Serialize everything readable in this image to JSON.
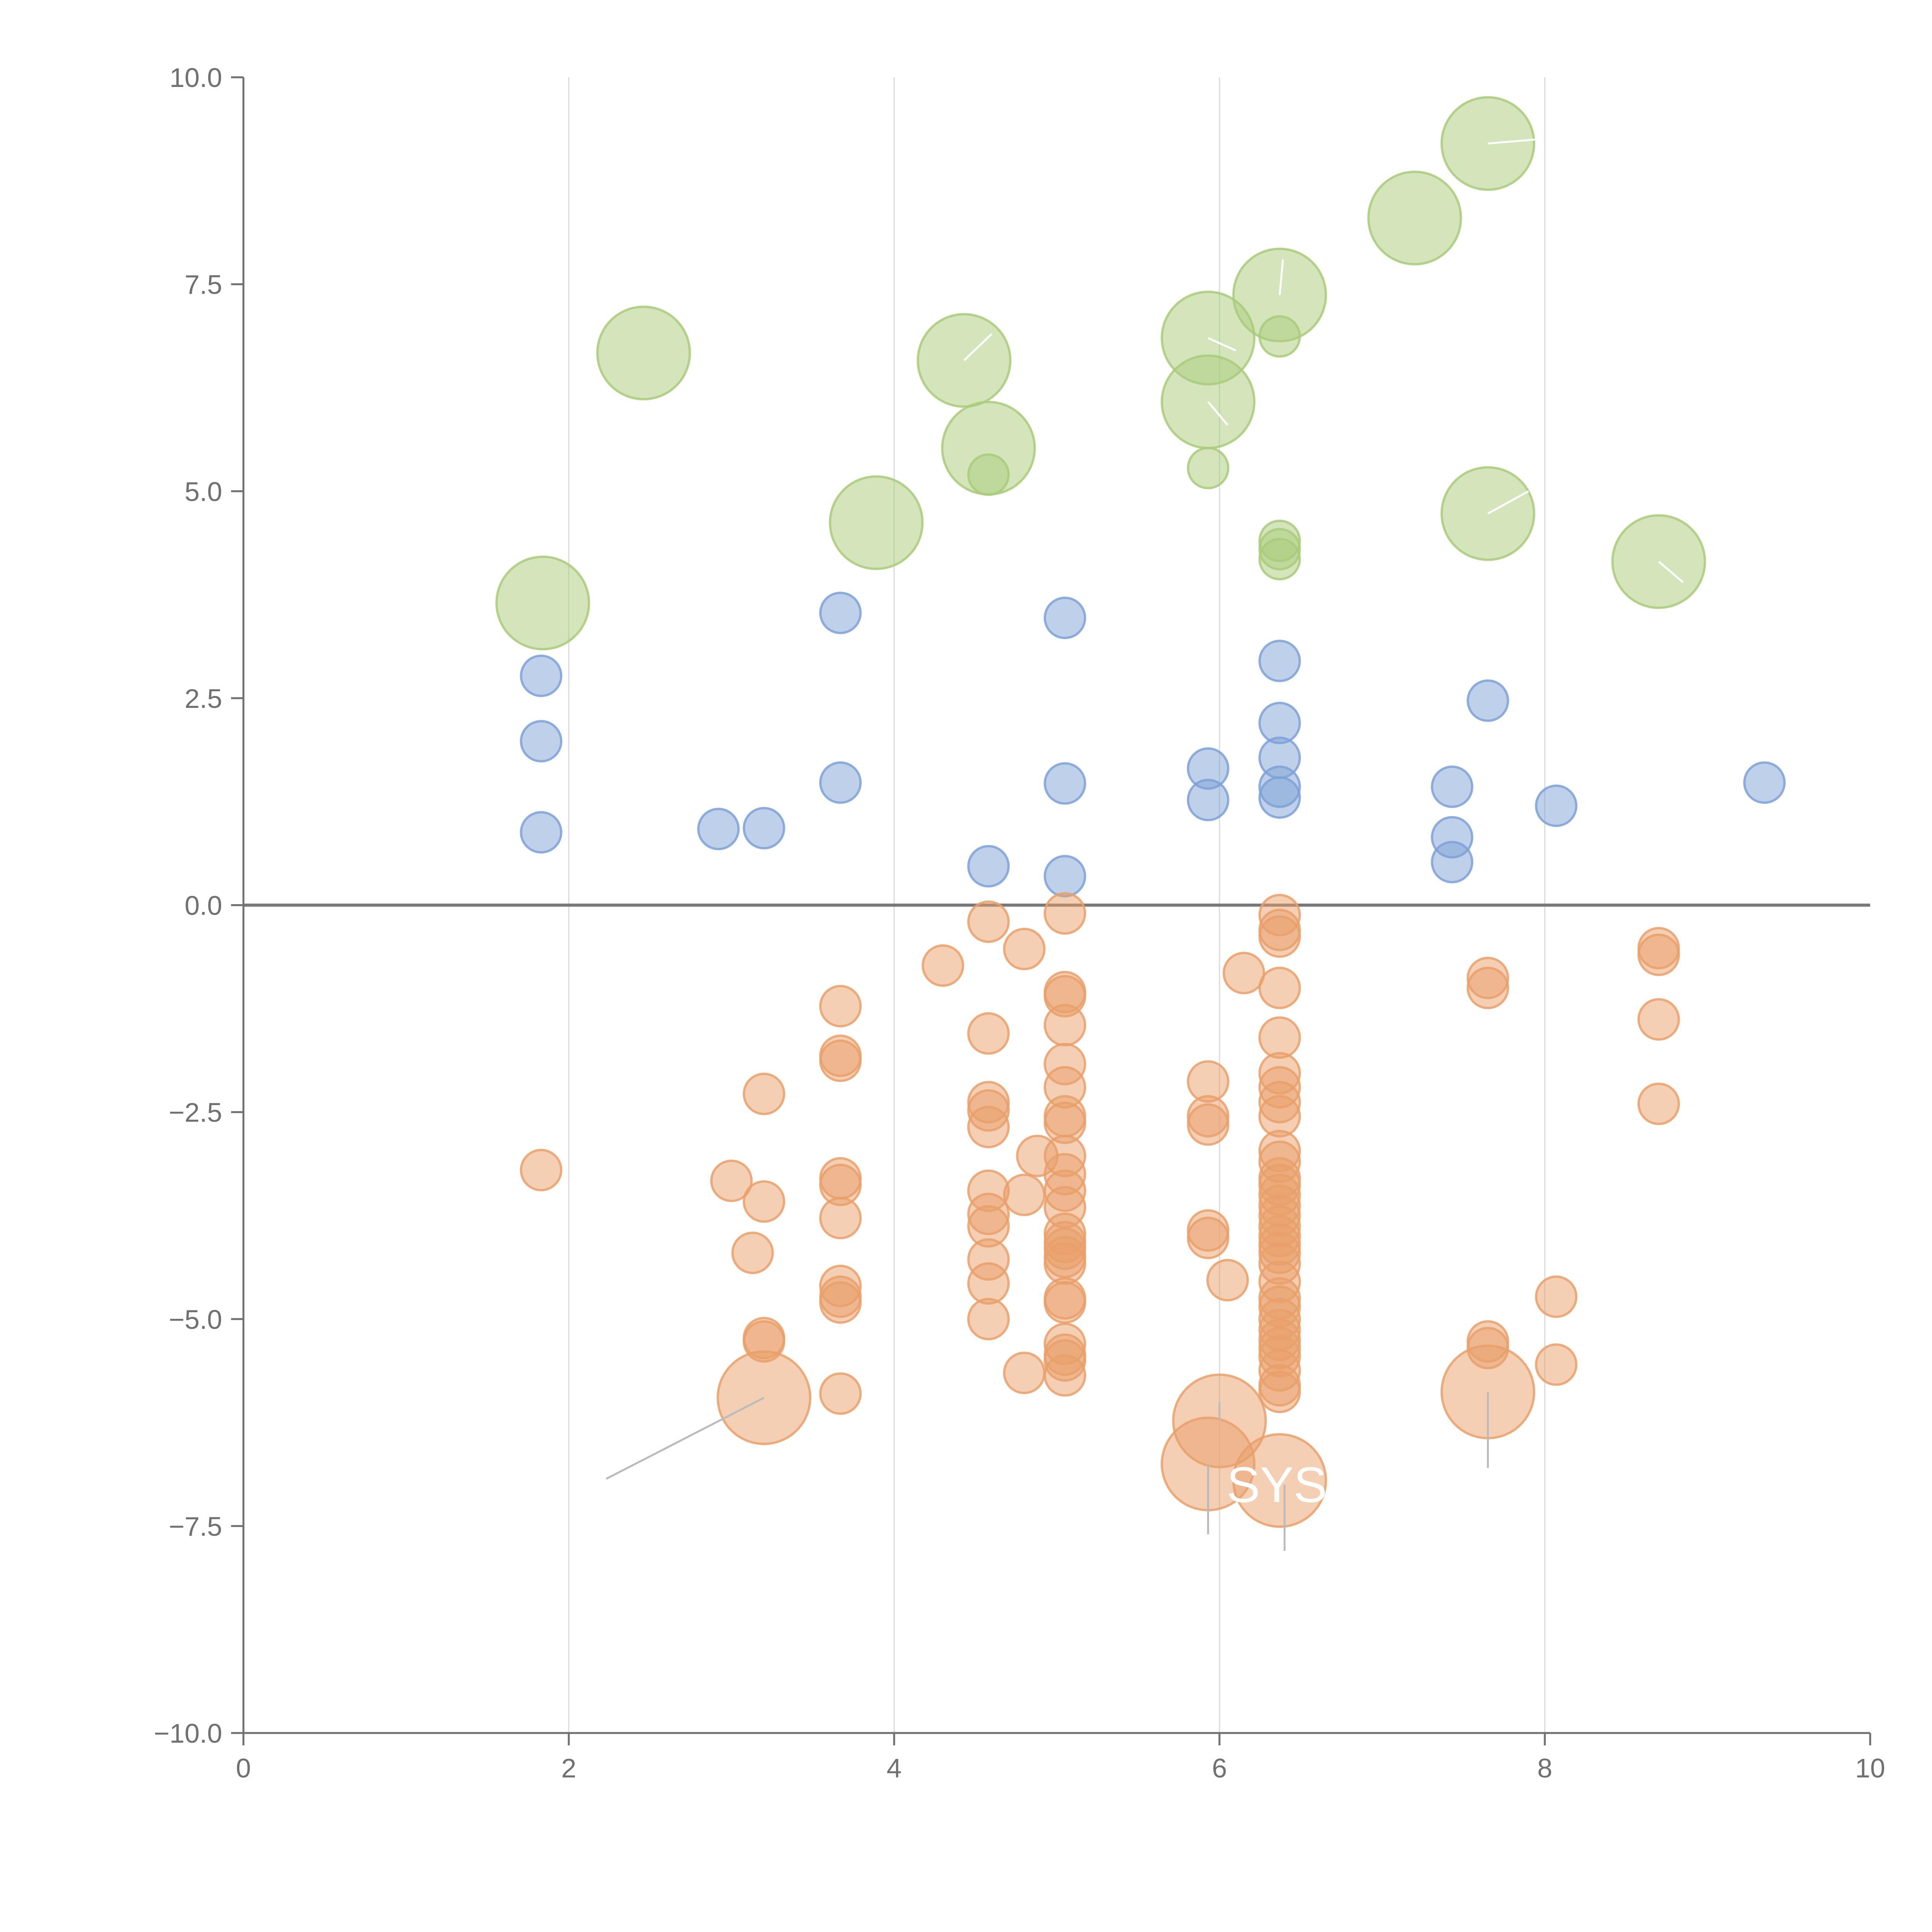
{
  "chart_data": {
    "type": "scatter",
    "title": "",
    "xlabel": "",
    "ylabel": "",
    "xlim": [
      0,
      10
    ],
    "ylim": [
      -10,
      10
    ],
    "x_ticks": [
      "0",
      "2",
      "4",
      "6",
      "8",
      "10"
    ],
    "y_ticks": [
      "10.0",
      "7.5",
      "5.0",
      "2.5",
      "0.0",
      "−2.5",
      "−5.0",
      "−7.5",
      "−10.0"
    ],
    "grid": "vertical",
    "zero_line": 0,
    "colors": {
      "green": "#a9cb7a",
      "blue": "#7ea1d6",
      "orange": "#e9a06a",
      "gridline": "#d9d9d9",
      "axis": "#707070",
      "zeroline": "#777777"
    },
    "annotations": [
      {
        "text": "SYS",
        "x": 6.4,
        "y": -7.0
      }
    ],
    "series": [
      {
        "name": "green",
        "color": "#a9cb7a",
        "points": [
          [
            7.65,
            9.2,
            2.3
          ],
          [
            7.2,
            8.3,
            2.3
          ],
          [
            6.37,
            7.37,
            2.3
          ],
          [
            5.93,
            6.85,
            2.3
          ],
          [
            6.37,
            6.87,
            1
          ],
          [
            2.46,
            6.67,
            2.3
          ],
          [
            4.43,
            6.58,
            2.3
          ],
          [
            5.93,
            6.08,
            2.3
          ],
          [
            4.58,
            5.52,
            2.3
          ],
          [
            4.58,
            5.2,
            1
          ],
          [
            5.93,
            5.28,
            1
          ],
          [
            3.89,
            4.62,
            2.3
          ],
          [
            7.65,
            4.73,
            2.3
          ],
          [
            6.37,
            4.4,
            1
          ],
          [
            6.37,
            4.3,
            1
          ],
          [
            6.37,
            4.18,
            1
          ],
          [
            8.7,
            4.15,
            2.3
          ],
          [
            1.84,
            3.65,
            2.3
          ]
        ]
      },
      {
        "name": "blue",
        "color": "#7ea1d6",
        "points": [
          [
            3.67,
            3.53,
            1
          ],
          [
            5.05,
            3.47,
            1
          ],
          [
            1.83,
            2.77,
            1
          ],
          [
            6.37,
            2.95,
            1
          ],
          [
            7.65,
            2.47,
            1
          ],
          [
            6.37,
            2.2,
            1
          ],
          [
            1.83,
            1.98,
            1
          ],
          [
            5.93,
            1.65,
            1
          ],
          [
            6.37,
            1.78,
            1
          ],
          [
            3.67,
            1.48,
            1
          ],
          [
            5.05,
            1.47,
            1
          ],
          [
            7.43,
            1.43,
            1
          ],
          [
            9.35,
            1.48,
            1
          ],
          [
            6.37,
            1.43,
            1
          ],
          [
            5.93,
            1.27,
            1
          ],
          [
            6.37,
            1.3,
            1
          ],
          [
            8.07,
            1.2,
            1
          ],
          [
            2.92,
            0.92,
            1
          ],
          [
            3.2,
            0.93,
            1
          ],
          [
            1.83,
            0.88,
            1
          ],
          [
            7.43,
            0.82,
            1
          ],
          [
            4.58,
            0.47,
            1
          ],
          [
            7.43,
            0.52,
            1
          ],
          [
            5.05,
            0.35,
            1
          ]
        ]
      },
      {
        "name": "orange",
        "color": "#e9a06a",
        "points": [
          [
            5.05,
            -0.1,
            1
          ],
          [
            4.58,
            -0.2,
            1
          ],
          [
            6.37,
            -0.12,
            1
          ],
          [
            6.37,
            -0.3,
            1
          ],
          [
            6.37,
            -0.38,
            1
          ],
          [
            4.8,
            -0.53,
            1
          ],
          [
            4.3,
            -0.73,
            1
          ],
          [
            6.15,
            -0.82,
            1
          ],
          [
            7.65,
            -0.88,
            1
          ],
          [
            7.65,
            -1.0,
            1
          ],
          [
            8.7,
            -0.52,
            1
          ],
          [
            8.7,
            -0.6,
            1
          ],
          [
            6.37,
            -1.0,
            1
          ],
          [
            5.05,
            -1.05,
            1
          ],
          [
            5.05,
            -1.1,
            1
          ],
          [
            3.67,
            -1.22,
            1
          ],
          [
            5.05,
            -1.45,
            1
          ],
          [
            4.58,
            -1.55,
            1
          ],
          [
            6.37,
            -1.6,
            1
          ],
          [
            8.7,
            -1.38,
            1
          ],
          [
            3.67,
            -1.82,
            1
          ],
          [
            3.67,
            -1.88,
            1
          ],
          [
            5.05,
            -1.92,
            1
          ],
          [
            5.93,
            -2.13,
            1
          ],
          [
            6.37,
            -2.03,
            1
          ],
          [
            6.37,
            -2.2,
            1
          ],
          [
            5.05,
            -2.2,
            1
          ],
          [
            3.2,
            -2.28,
            1
          ],
          [
            4.58,
            -2.38,
            1
          ],
          [
            4.58,
            -2.48,
            1
          ],
          [
            6.37,
            -2.38,
            1
          ],
          [
            5.93,
            -2.55,
            1
          ],
          [
            5.93,
            -2.65,
            1
          ],
          [
            5.05,
            -2.55,
            1
          ],
          [
            5.05,
            -2.63,
            1
          ],
          [
            6.37,
            -2.55,
            1
          ],
          [
            4.58,
            -2.68,
            1
          ],
          [
            8.7,
            -2.4,
            1
          ],
          [
            4.88,
            -3.03,
            1
          ],
          [
            5.05,
            -3.03,
            1
          ],
          [
            6.37,
            -2.97,
            1
          ],
          [
            6.37,
            -3.1,
            1
          ],
          [
            1.83,
            -3.2,
            1
          ],
          [
            3.0,
            -3.33,
            1
          ],
          [
            3.67,
            -3.3,
            1
          ],
          [
            3.67,
            -3.38,
            1
          ],
          [
            5.05,
            -3.25,
            1
          ],
          [
            6.37,
            -3.3,
            1
          ],
          [
            6.37,
            -3.38,
            1
          ],
          [
            4.58,
            -3.45,
            1
          ],
          [
            5.05,
            -3.45,
            1
          ],
          [
            4.8,
            -3.5,
            1
          ],
          [
            6.37,
            -3.5,
            1
          ],
          [
            3.2,
            -3.58,
            1
          ],
          [
            5.05,
            -3.65,
            1
          ],
          [
            6.37,
            -3.63,
            1
          ],
          [
            4.58,
            -3.73,
            1
          ],
          [
            3.67,
            -3.78,
            1
          ],
          [
            6.37,
            -3.75,
            1
          ],
          [
            4.58,
            -3.88,
            1
          ],
          [
            5.93,
            -3.93,
            1
          ],
          [
            5.93,
            -4.02,
            1
          ],
          [
            5.05,
            -3.97,
            1
          ],
          [
            6.37,
            -3.88,
            1
          ],
          [
            6.37,
            -4.0,
            1
          ],
          [
            5.05,
            -4.07,
            1
          ],
          [
            6.37,
            -4.1,
            1
          ],
          [
            3.13,
            -4.2,
            1
          ],
          [
            5.05,
            -4.15,
            1
          ],
          [
            5.05,
            -4.25,
            1
          ],
          [
            6.37,
            -4.2,
            1
          ],
          [
            4.58,
            -4.28,
            1
          ],
          [
            5.05,
            -4.33,
            1
          ],
          [
            6.37,
            -4.33,
            1
          ],
          [
            6.05,
            -4.53,
            1
          ],
          [
            4.58,
            -4.57,
            1
          ],
          [
            3.67,
            -4.6,
            1
          ],
          [
            6.37,
            -4.55,
            1
          ],
          [
            3.67,
            -4.73,
            1
          ],
          [
            3.67,
            -4.8,
            1
          ],
          [
            5.05,
            -4.75,
            1
          ],
          [
            5.05,
            -4.8,
            1
          ],
          [
            6.37,
            -4.75,
            1
          ],
          [
            6.37,
            -4.85,
            1
          ],
          [
            8.07,
            -4.73,
            1
          ],
          [
            4.58,
            -5.0,
            1
          ],
          [
            6.37,
            -5.0,
            1
          ],
          [
            6.37,
            -5.13,
            1
          ],
          [
            3.2,
            -5.23,
            1
          ],
          [
            3.2,
            -5.27,
            1
          ],
          [
            7.65,
            -5.27,
            1
          ],
          [
            7.65,
            -5.35,
            1
          ],
          [
            5.05,
            -5.3,
            1
          ],
          [
            6.37,
            -5.25,
            1
          ],
          [
            6.37,
            -5.35,
            1
          ],
          [
            5.05,
            -5.43,
            1
          ],
          [
            5.05,
            -5.5,
            1
          ],
          [
            6.37,
            -5.45,
            1
          ],
          [
            8.07,
            -5.55,
            1
          ],
          [
            4.8,
            -5.65,
            1
          ],
          [
            5.05,
            -5.68,
            1
          ],
          [
            6.37,
            -5.62,
            1
          ],
          [
            6.37,
            -5.8,
            1
          ],
          [
            6.37,
            -5.88,
            1
          ],
          [
            3.67,
            -5.9,
            1
          ],
          [
            3.2,
            -5.95,
            2.3
          ],
          [
            7.65,
            -5.88,
            2.3
          ],
          [
            6.0,
            -6.23,
            2.3
          ],
          [
            5.93,
            -6.75,
            2.3
          ],
          [
            6.37,
            -6.95,
            2.3
          ]
        ]
      }
    ]
  }
}
